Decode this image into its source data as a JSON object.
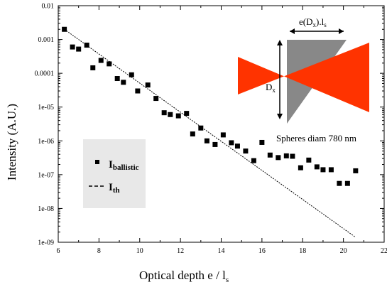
{
  "chart_data": {
    "type": "scatter",
    "xlabel": "Optical depth e / l",
    "xlabel_sub": "s",
    "ylabel": "Intensity (A.U.)",
    "xlim": [
      6,
      22
    ],
    "ylim_log10": [
      -9,
      -2
    ],
    "yscale": "log",
    "x_ticks": [
      6,
      8,
      10,
      12,
      14,
      16,
      18,
      20,
      22
    ],
    "y_tick_labels": [
      "0.01",
      "0.001",
      "0.0001",
      "1e-05",
      "1e-06",
      "1e-07",
      "1e-08",
      "1e-09"
    ],
    "y_tick_values_log10": [
      -2,
      -3,
      -4,
      -5,
      -6,
      -7,
      -8,
      -9
    ],
    "legend": {
      "placement": "left",
      "items": [
        {
          "marker": "square",
          "label": "I",
          "sub": "ballistic"
        },
        {
          "marker": "dashed-line",
          "label": "I",
          "sub": "th"
        }
      ]
    },
    "series": [
      {
        "name": "I ballistic",
        "marker": "square",
        "x": [
          6.3,
          6.7,
          7.0,
          7.4,
          7.7,
          8.1,
          8.5,
          8.9,
          9.2,
          9.6,
          9.9,
          10.4,
          10.8,
          11.2,
          11.5,
          11.9,
          12.3,
          12.6,
          13.0,
          13.3,
          13.7,
          14.1,
          14.5,
          14.8,
          15.2,
          15.6,
          16.0,
          16.4,
          16.8,
          17.2,
          17.5,
          17.9,
          18.3,
          18.7,
          19.0,
          19.4,
          19.8,
          20.2,
          20.6
        ],
        "y": [
          0.002,
          0.0006,
          0.00052,
          0.00068,
          0.000145,
          0.00024,
          0.00019,
          7e-05,
          5.4e-05,
          9e-05,
          3e-05,
          4.5e-05,
          1.8e-05,
          6.8e-06,
          6e-06,
          5.5e-06,
          6.5e-06,
          1.6e-06,
          2.4e-06,
          1e-06,
          7.8e-07,
          1.5e-06,
          8.8e-07,
          7e-07,
          5e-07,
          2.6e-07,
          9e-07,
          3.8e-07,
          3.2e-07,
          3.6e-07,
          3.5e-07,
          1.6e-07,
          2.7e-07,
          1.7e-07,
          1.4e-07,
          1.4e-07,
          5.5e-08,
          5.5e-08,
          1.3e-07
        ]
      },
      {
        "name": "I th",
        "type": "line",
        "x": [
          6.3,
          20.6
        ],
        "y": [
          0.002,
          1.4e-09
        ]
      }
    ],
    "annotations": {
      "width_label": "e(D",
      "width_label_sub": "x",
      "width_label_tail": ").l",
      "width_label_sub2": "s",
      "height_label": "D",
      "height_label_sub": "x",
      "caption": "Spheres diam 780 nm"
    },
    "colors": {
      "beam": "#ff3300",
      "prism": "#888888",
      "legend_bg": "#e8e8e8",
      "markers": "#000000"
    }
  }
}
